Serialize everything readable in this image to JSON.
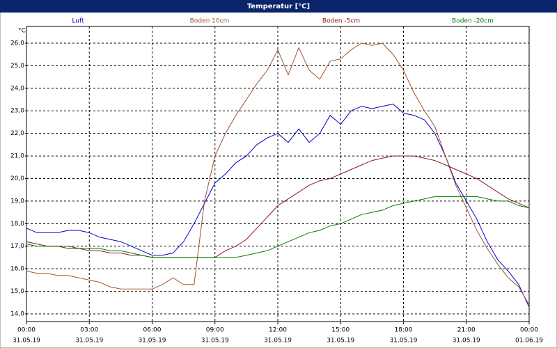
{
  "chart_data": {
    "type": "line",
    "title": "Temperatur [°C]",
    "y_unit": "°C",
    "x": [
      0,
      0.5,
      1,
      1.5,
      2,
      2.5,
      3,
      3.5,
      4,
      4.5,
      5,
      5.5,
      6,
      6.5,
      7,
      7.5,
      8,
      8.5,
      9,
      9.5,
      10,
      10.5,
      11,
      11.5,
      12,
      12.5,
      13,
      13.5,
      14,
      14.5,
      15,
      15.5,
      16,
      16.5,
      17,
      17.5,
      18,
      18.5,
      19,
      19.5,
      20,
      20.5,
      21,
      21.5,
      22,
      22.5,
      23,
      23.5,
      24
    ],
    "xlim": [
      0,
      24
    ],
    "xticks": [
      {
        "value": 0,
        "label": "00:00",
        "date": "31.05.19"
      },
      {
        "value": 3,
        "label": "03:00",
        "date": "31.05.19"
      },
      {
        "value": 6,
        "label": "06:00",
        "date": "31.05.19"
      },
      {
        "value": 9,
        "label": "09:00",
        "date": "31.05.19"
      },
      {
        "value": 12,
        "label": "12:00",
        "date": "31.05.19"
      },
      {
        "value": 15,
        "label": "15:00",
        "date": "31.05.19"
      },
      {
        "value": 18,
        "label": "18:00",
        "date": "31.05.19"
      },
      {
        "value": 21,
        "label": "21:00",
        "date": "31.05.19"
      },
      {
        "value": 24,
        "label": "00:00",
        "date": "01.06.19"
      }
    ],
    "ylim": [
      13.66,
      26.74
    ],
    "yticks": [
      {
        "value": 14,
        "label": "14,0"
      },
      {
        "value": 15,
        "label": "15,0"
      },
      {
        "value": 16,
        "label": "16,0"
      },
      {
        "value": 17,
        "label": "17,0"
      },
      {
        "value": 18,
        "label": "18,0"
      },
      {
        "value": 19,
        "label": "19,0"
      },
      {
        "value": 20,
        "label": "20,0"
      },
      {
        "value": 21,
        "label": "21,0"
      },
      {
        "value": 22,
        "label": "22,0"
      },
      {
        "value": 23,
        "label": "23,0"
      },
      {
        "value": 24,
        "label": "24,0"
      },
      {
        "value": 25,
        "label": "25,0"
      },
      {
        "value": 26,
        "label": "26,0"
      }
    ],
    "grid": true,
    "series": [
      {
        "name": "Luft",
        "color": "#0000cc",
        "values": [
          17.8,
          17.6,
          17.6,
          17.6,
          17.7,
          17.7,
          17.6,
          17.4,
          17.3,
          17.2,
          17.0,
          16.8,
          16.6,
          16.6,
          16.7,
          17.2,
          18.0,
          18.9,
          19.8,
          20.2,
          20.7,
          21.0,
          21.5,
          21.8,
          22.0,
          21.6,
          22.2,
          21.6,
          22.0,
          22.8,
          22.4,
          23.0,
          23.2,
          23.1,
          23.2,
          23.3,
          22.9,
          22.8,
          22.6,
          22.0,
          21.0,
          19.8,
          19.0,
          18.2,
          17.2,
          16.4,
          15.9,
          15.3,
          14.3
        ]
      },
      {
        "name": "Boden 10cm",
        "color": "#a0522d",
        "values": [
          15.9,
          15.8,
          15.8,
          15.7,
          15.7,
          15.6,
          15.5,
          15.4,
          15.2,
          15.1,
          15.1,
          15.1,
          15.1,
          15.3,
          15.6,
          15.3,
          15.3,
          19.0,
          21.0,
          22.0,
          22.8,
          23.5,
          24.2,
          24.8,
          25.7,
          24.6,
          25.8,
          24.8,
          24.4,
          25.2,
          25.3,
          25.7,
          26.0,
          25.9,
          26.0,
          25.5,
          24.8,
          23.8,
          23.0,
          22.3,
          21.0,
          19.7,
          18.7,
          17.7,
          16.9,
          16.2,
          15.6,
          15.2,
          14.4
        ]
      },
      {
        "name": "Boden -5cm",
        "color": "#8b1a1a",
        "values": [
          17.2,
          17.1,
          17.0,
          17.0,
          16.9,
          16.9,
          16.8,
          16.8,
          16.7,
          16.7,
          16.6,
          16.6,
          16.5,
          16.5,
          16.5,
          16.5,
          16.5,
          16.5,
          16.5,
          16.8,
          17.0,
          17.3,
          17.8,
          18.3,
          18.8,
          19.1,
          19.4,
          19.7,
          19.9,
          20.0,
          20.2,
          20.4,
          20.6,
          20.8,
          20.9,
          21.0,
          21.0,
          21.0,
          20.9,
          20.8,
          20.6,
          20.4,
          20.2,
          20.0,
          19.7,
          19.4,
          19.1,
          18.9,
          18.7
        ]
      },
      {
        "name": "Boden -20cm",
        "color": "#008000",
        "values": [
          17.1,
          17.0,
          17.0,
          17.0,
          17.0,
          16.9,
          16.9,
          16.9,
          16.8,
          16.8,
          16.7,
          16.6,
          16.5,
          16.5,
          16.5,
          16.5,
          16.5,
          16.5,
          16.5,
          16.5,
          16.5,
          16.6,
          16.7,
          16.8,
          17.0,
          17.2,
          17.4,
          17.6,
          17.7,
          17.9,
          18.0,
          18.2,
          18.4,
          18.5,
          18.6,
          18.8,
          18.9,
          19.0,
          19.1,
          19.2,
          19.2,
          19.2,
          19.2,
          19.2,
          19.1,
          19.0,
          19.0,
          18.8,
          18.7
        ]
      }
    ]
  }
}
